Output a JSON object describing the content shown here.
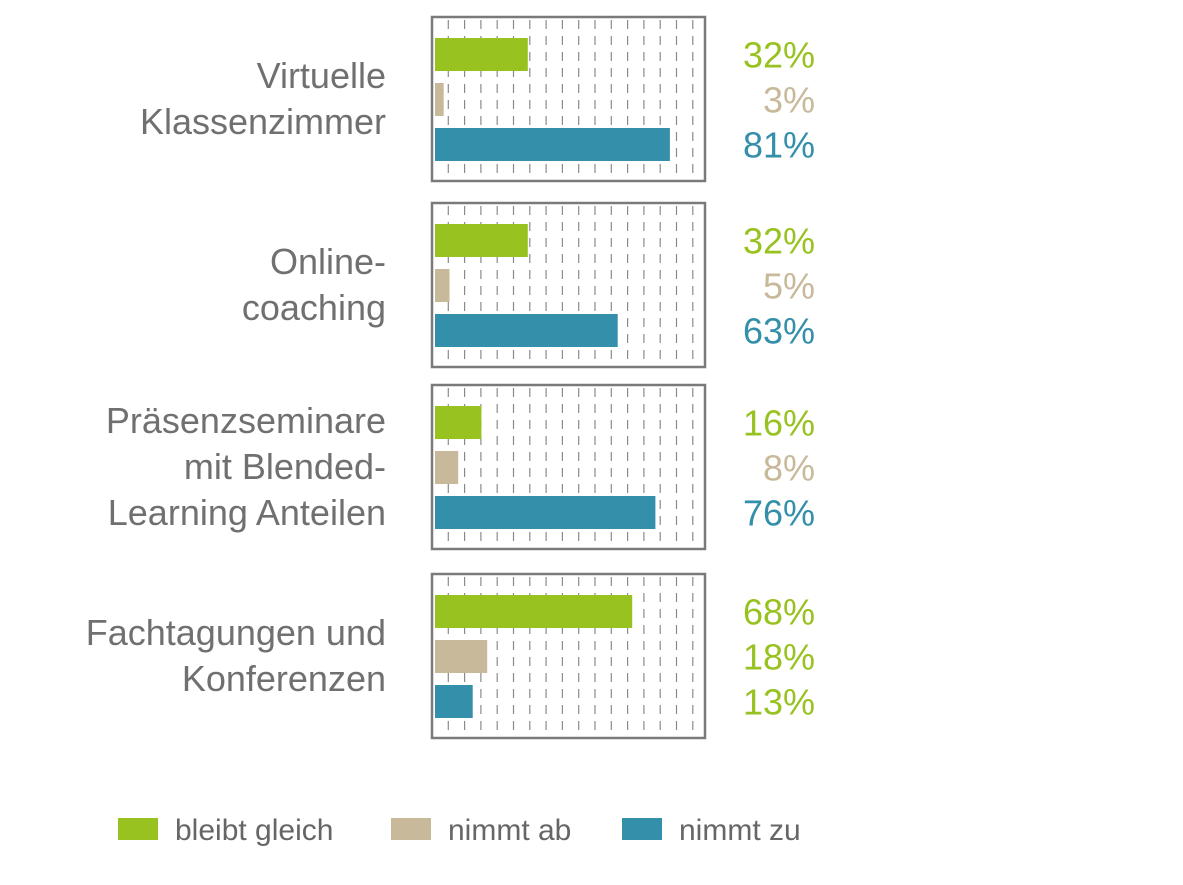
{
  "chart_data": {
    "type": "bar",
    "orientation": "horizontal",
    "title": "",
    "xlabel": "",
    "ylabel": "",
    "xlim": [
      0,
      100
    ],
    "grid": true,
    "legend_position": "bottom",
    "colors": {
      "bleibt gleich": "#98c21f",
      "nimmt ab": "#c9b99b",
      "nimmt zu": "#338faa"
    },
    "categories": [
      [
        "Virtuelle",
        "Klassenzimmer"
      ],
      [
        "Online-",
        "coaching"
      ],
      [
        "Präsenzseminare",
        "mit Blended-",
        "Learning Anteilen"
      ],
      [
        "Fachtagungen und",
        "Konferenzen"
      ]
    ],
    "series": [
      {
        "name": "bleibt gleich",
        "values": [
          32,
          32,
          16,
          68
        ]
      },
      {
        "name": "nimmt ab",
        "values": [
          3,
          5,
          8,
          18
        ]
      },
      {
        "name": "nimmt zu",
        "values": [
          81,
          63,
          76,
          13
        ]
      }
    ],
    "data_labels": [
      [
        {
          "text": "32%",
          "color": "#98c21f"
        },
        {
          "text": "3%",
          "color": "#c9b99b"
        },
        {
          "text": "81%",
          "color": "#338faa"
        }
      ],
      [
        {
          "text": "32%",
          "color": "#98c21f"
        },
        {
          "text": "5%",
          "color": "#c9b99b"
        },
        {
          "text": "63%",
          "color": "#338faa"
        }
      ],
      [
        {
          "text": "16%",
          "color": "#98c21f"
        },
        {
          "text": "8%",
          "color": "#c9b99b"
        },
        {
          "text": "76%",
          "color": "#338faa"
        }
      ],
      [
        {
          "text": "68%",
          "color": "#98c21f"
        },
        {
          "text": "18%",
          "color": "#98c21f"
        },
        {
          "text": "13%",
          "color": "#98c21f"
        }
      ]
    ]
  }
}
